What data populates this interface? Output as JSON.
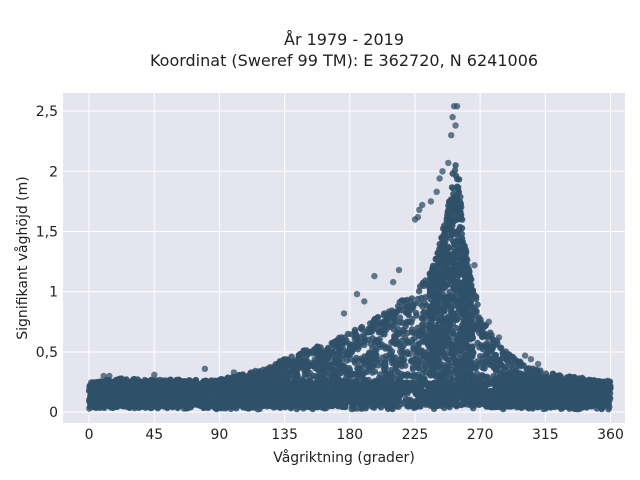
{
  "chart_data": {
    "type": "scatter",
    "title_line1": "År 1979 - 2019",
    "title_line2": "Koordinat (Sweref 99 TM): E 362720, N 6241006",
    "xlabel": "Vågriktning (grader)",
    "ylabel": "Signifikant våghöjd (m)",
    "xlim": [
      -18,
      370
    ],
    "ylim": [
      -0.09,
      2.65
    ],
    "x_ticks": [
      0,
      45,
      90,
      135,
      180,
      225,
      270,
      315,
      360
    ],
    "x_tick_labels": [
      "0",
      "45",
      "90",
      "135",
      "180",
      "225",
      "270",
      "315",
      "360"
    ],
    "y_ticks": [
      0,
      0.5,
      1,
      1.5,
      2,
      2.5
    ],
    "y_tick_labels": [
      "0",
      "0,5",
      "1",
      "1,5",
      "2",
      "2,5"
    ],
    "grid": true,
    "marker_color": "#2f5068",
    "plot_background": "#e5e5ef",
    "envelope": {
      "x": [
        0,
        20,
        45,
        90,
        120,
        135,
        150,
        165,
        180,
        195,
        210,
        225,
        235,
        240,
        245,
        250,
        252,
        255,
        258,
        262,
        265,
        270,
        275,
        280,
        290,
        300,
        315,
        330,
        345,
        360
      ],
      "y_max": [
        0.25,
        0.28,
        0.27,
        0.27,
        0.36,
        0.44,
        0.52,
        0.58,
        0.66,
        0.76,
        0.88,
        1.0,
        1.15,
        1.3,
        1.55,
        1.85,
        2.1,
        2.0,
        1.55,
        1.2,
        1.05,
        0.85,
        0.72,
        0.62,
        0.48,
        0.4,
        0.33,
        0.3,
        0.28,
        0.24
      ]
    },
    "outliers": [
      {
        "x": 252,
        "y": 2.54
      },
      {
        "x": 254,
        "y": 2.54
      },
      {
        "x": 251,
        "y": 2.45
      },
      {
        "x": 253,
        "y": 2.38
      },
      {
        "x": 250,
        "y": 2.3
      },
      {
        "x": 248,
        "y": 2.07
      },
      {
        "x": 242,
        "y": 1.94
      },
      {
        "x": 244,
        "y": 2.0
      },
      {
        "x": 240,
        "y": 1.83
      },
      {
        "x": 236,
        "y": 1.75
      },
      {
        "x": 230,
        "y": 1.72
      },
      {
        "x": 228,
        "y": 1.68
      },
      {
        "x": 225,
        "y": 1.6
      },
      {
        "x": 227,
        "y": 1.62
      },
      {
        "x": 214,
        "y": 1.18
      },
      {
        "x": 210,
        "y": 1.08
      },
      {
        "x": 197,
        "y": 1.13
      },
      {
        "x": 190,
        "y": 0.92
      },
      {
        "x": 185,
        "y": 0.98
      },
      {
        "x": 176,
        "y": 0.82
      },
      {
        "x": 266,
        "y": 1.22
      },
      {
        "x": 276,
        "y": 0.75
      },
      {
        "x": 283,
        "y": 0.62
      },
      {
        "x": 290,
        "y": 0.48
      },
      {
        "x": 301,
        "y": 0.47
      },
      {
        "x": 305,
        "y": 0.44
      },
      {
        "x": 310,
        "y": 0.4
      },
      {
        "x": 325,
        "y": 0.3
      },
      {
        "x": 10,
        "y": 0.3
      },
      {
        "x": 14,
        "y": 0.3
      },
      {
        "x": 45,
        "y": 0.31
      },
      {
        "x": 80,
        "y": 0.36
      },
      {
        "x": 100,
        "y": 0.33
      }
    ]
  }
}
